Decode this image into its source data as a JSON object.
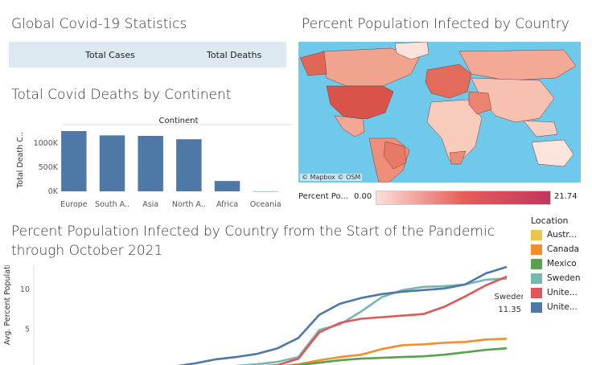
{
  "global": {
    "title": "Global Covid-19 Statistics",
    "col_cases": "Total Cases",
    "col_deaths": "Total Deaths"
  },
  "deaths": {
    "title": "Total Covid Deaths by Continent"
  },
  "map": {
    "title": "Percent Population Infected by Country",
    "credit": "© Mapbox  © OSM",
    "legend_label": "Percent Po...",
    "legend_min": "0.00",
    "legend_max": "21.74",
    "ocean_color": "#6ec9ea",
    "low_color": "#fbe0da",
    "high_color": "#c2365e"
  },
  "line": {
    "title": "Percent Population Infected by Country from the Start of the Pandemic through October 2021",
    "annotation_name": "Sweden",
    "annotation_value": "11.35"
  },
  "legend": {
    "title": "Location",
    "items": [
      {
        "label": "Austr...",
        "color": "#e9c64b"
      },
      {
        "label": "Canada",
        "color": "#f28e2b"
      },
      {
        "label": "Mexico",
        "color": "#59a14f"
      },
      {
        "label": "Sweden",
        "color": "#76b7b2"
      },
      {
        "label": "Unite...",
        "color": "#e15759"
      },
      {
        "label": "Unite...",
        "color": "#4e79a7"
      }
    ]
  },
  "chart_data": [
    {
      "type": "bar",
      "header": "Continent",
      "categories": [
        "Europe",
        "South A..",
        "Asia",
        "North A..",
        "Africa",
        "Oceania"
      ],
      "values": [
        1250000,
        1160000,
        1150000,
        1080000,
        215000,
        2000
      ],
      "ylabel": "Total Death C..",
      "yticks": [
        0,
        500000,
        1000000
      ],
      "ytick_labels": [
        "0K",
        "500K",
        "1000K"
      ],
      "ylim": [
        0,
        1300000
      ],
      "color": "#4e79a7"
    },
    {
      "type": "line",
      "ylabel": "Avg. Percent Population..",
      "yticks": [
        0,
        5,
        10
      ],
      "ytick_labels": [
        "0",
        "5",
        "10"
      ],
      "ylim": [
        -0.3,
        12.2
      ],
      "x": [
        0,
        1,
        2,
        3,
        4,
        5,
        6,
        7,
        8,
        9,
        10,
        11,
        12,
        13,
        14,
        15,
        16,
        17,
        18,
        19,
        20
      ],
      "series": [
        {
          "name": "Austr...",
          "color": "#e9c64b",
          "values": [
            0,
            0,
            0,
            0,
            0,
            0,
            0,
            0,
            0,
            0,
            0,
            0,
            0,
            0,
            0,
            0,
            0,
            0,
            0,
            0,
            0.1
          ]
        },
        {
          "name": "Canada",
          "color": "#f28e2b",
          "values": [
            0,
            0,
            0,
            0,
            0.05,
            0.1,
            0.15,
            0.2,
            0.25,
            0.3,
            0.6,
            1.1,
            1.5,
            1.8,
            2.5,
            3.0,
            3.1,
            3.3,
            3.4,
            3.7,
            3.8
          ]
        },
        {
          "name": "Mexico",
          "color": "#59a14f",
          "values": [
            0,
            0,
            0,
            0,
            0.03,
            0.05,
            0.1,
            0.15,
            0.2,
            0.3,
            0.5,
            0.8,
            1.1,
            1.3,
            1.4,
            1.5,
            1.6,
            1.8,
            2.1,
            2.4,
            2.6
          ]
        },
        {
          "name": "Sweden",
          "color": "#76b7b2",
          "values": [
            0,
            0,
            0,
            0,
            0.1,
            0.2,
            0.3,
            0.4,
            0.6,
            0.9,
            1.5,
            4.9,
            5.6,
            7.2,
            9.0,
            9.9,
            10.3,
            10.4,
            10.6,
            11.2,
            11.35
          ]
        },
        {
          "name": "Unite...",
          "color": "#e15759",
          "values": [
            0,
            0,
            0,
            0,
            0.05,
            0.1,
            0.15,
            0.2,
            0.3,
            0.5,
            1.3,
            4.6,
            5.8,
            6.3,
            6.5,
            6.7,
            6.9,
            7.8,
            9.1,
            10.5,
            11.6
          ]
        },
        {
          "name": "Unite...",
          "color": "#4e79a7",
          "values": [
            0,
            0,
            0,
            0.1,
            0.3,
            0.7,
            1.2,
            1.5,
            1.9,
            2.6,
            3.9,
            6.8,
            8.2,
            8.9,
            9.4,
            9.7,
            9.9,
            10.1,
            10.6,
            12.0,
            12.8
          ]
        }
      ]
    }
  ]
}
